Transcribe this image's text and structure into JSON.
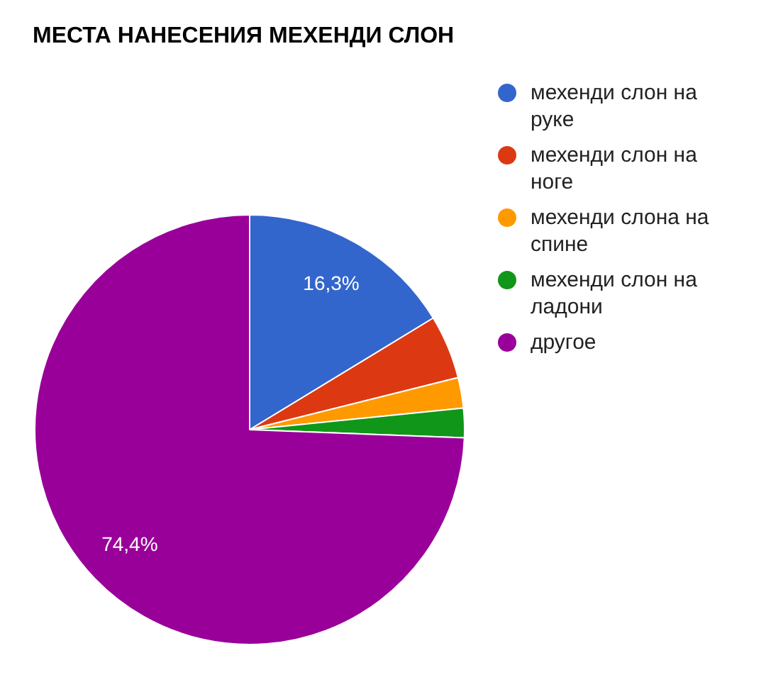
{
  "chart_data": {
    "type": "pie",
    "title": "МЕСТА НАНЕСЕНИЯ МЕХЕНДИ СЛОН",
    "categories": [
      "мехенди слон на руке",
      "мехенди слон на ноге",
      "мехенди слона на спине",
      "мехенди слон на ладони",
      "другое"
    ],
    "values": [
      16.3,
      4.8,
      2.3,
      2.2,
      74.4
    ],
    "colors": [
      "#3366cc",
      "#dc3912",
      "#ff9900",
      "#109618",
      "#990099"
    ],
    "value_labels": [
      "16,3%",
      null,
      null,
      null,
      "74,4%"
    ],
    "legend": "right"
  }
}
